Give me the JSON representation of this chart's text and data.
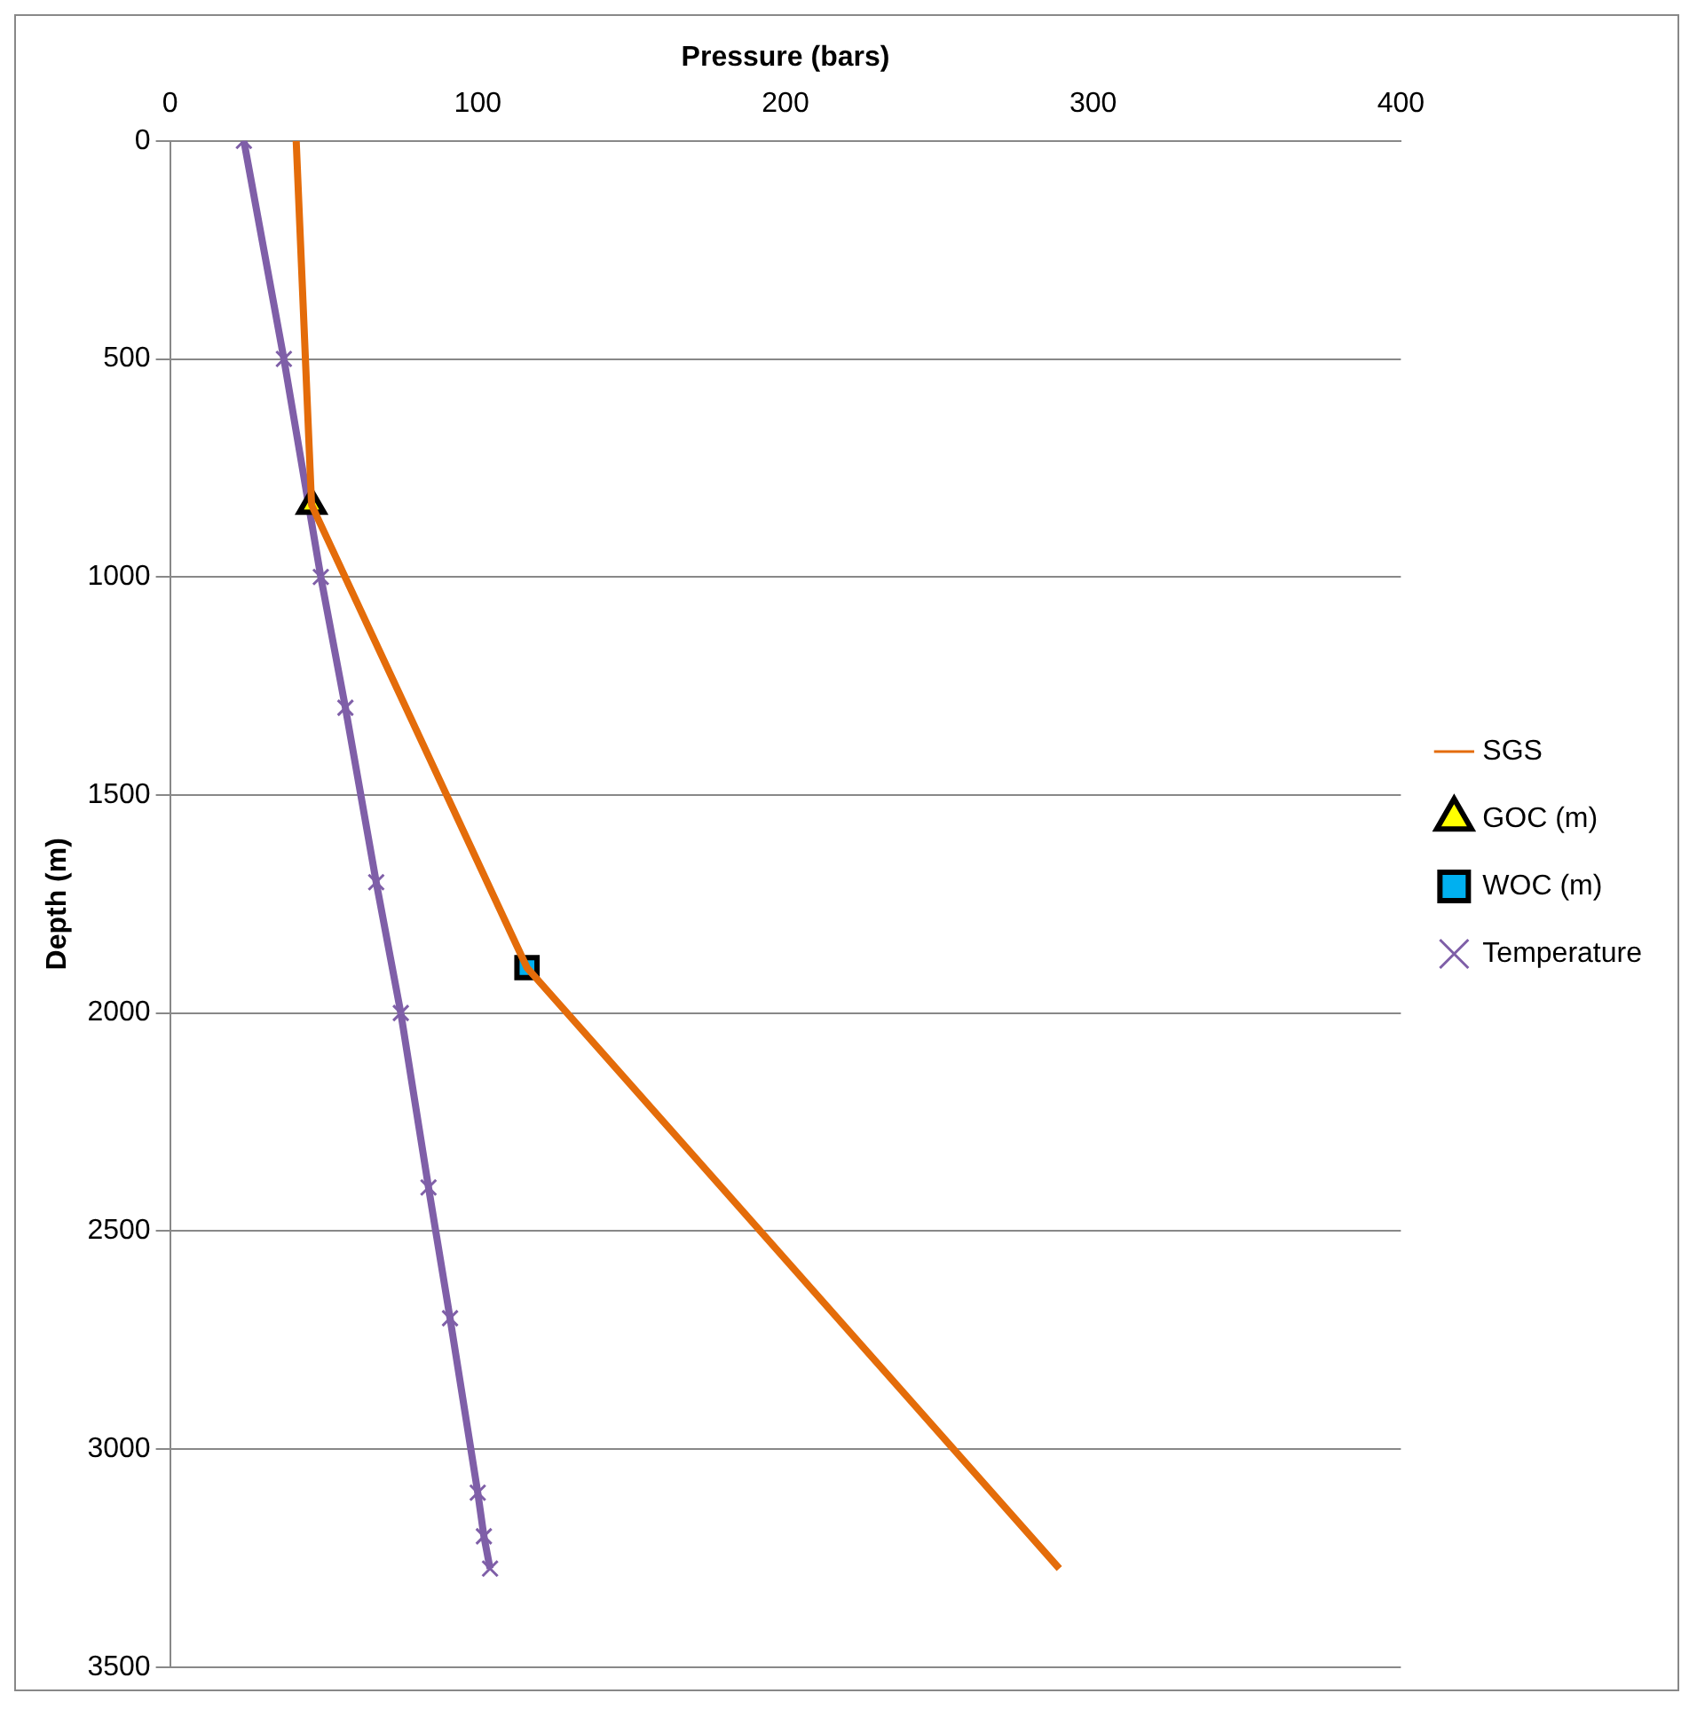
{
  "chart_data": {
    "type": "line",
    "xlabel": "Pressure (bars)",
    "ylabel": "Depth (m)",
    "xlim": [
      0,
      400
    ],
    "xticks": [
      0,
      100,
      200,
      300,
      400
    ],
    "ylim": [
      3500,
      0
    ],
    "yticks": [
      0,
      500,
      1000,
      1500,
      2000,
      2500,
      3000,
      3500
    ],
    "grid": "y",
    "legend": "right",
    "series": [
      {
        "name": "SGS",
        "type": "line",
        "color": "#e46c0a",
        "marker": "none",
        "x": [
          41,
          46,
          116,
          289
        ],
        "values": [
          0,
          835,
          1896,
          3274
        ]
      },
      {
        "name": "GOC (m)",
        "type": "scatter",
        "color": "#ffff00",
        "marker": "triangle",
        "x": [
          46
        ],
        "values": [
          835
        ]
      },
      {
        "name": "WOC (m)",
        "type": "scatter",
        "color": "#00b0f0",
        "marker": "square",
        "x": [
          116
        ],
        "values": [
          1896
        ]
      },
      {
        "name": "Temperature",
        "type": "line",
        "color": "#7f5fa8",
        "marker": "cross",
        "x": [
          24,
          37,
          49,
          57,
          67,
          75,
          84,
          91,
          100,
          102,
          104
        ],
        "values": [
          0,
          500,
          1000,
          1300,
          1700,
          2000,
          2400,
          2700,
          3100,
          3200,
          3274
        ]
      }
    ]
  }
}
